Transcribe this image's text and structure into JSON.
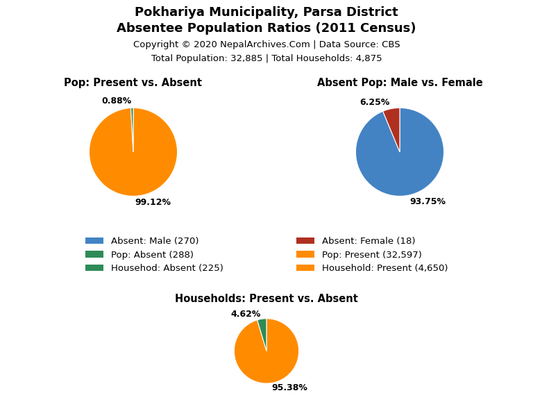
{
  "title": "Pokhariya Municipality, Parsa District",
  "subtitle": "Absentee Population Ratios (2011 Census)",
  "annotations": [
    "Copyright © 2020 NepalArchives.Com | Data Source: CBS",
    "Total Population: 32,885 | Total Households: 4,875"
  ],
  "legend_entries": [
    {
      "name": "Absent: Male (270)",
      "color": "#4383C4"
    },
    {
      "name": "Absent: Female (18)",
      "color": "#B03020"
    },
    {
      "name": "Pop: Absent (288)",
      "color": "#2E8B57"
    },
    {
      "name": "Pop: Present (32,597)",
      "color": "#FF8C00"
    },
    {
      "name": "Househod: Absent (225)",
      "color": "#2E8B57"
    },
    {
      "name": "Household: Present (4,650)",
      "color": "#FF8C00"
    }
  ],
  "chart_data": [
    {
      "type": "pie",
      "title": "Pop: Present vs. Absent",
      "values": [
        99.12,
        0.88
      ],
      "value_labels": [
        "99.12%",
        "0.88%"
      ],
      "colors": [
        "#FF8C00",
        "#2E8B57"
      ],
      "data_labels": true
    },
    {
      "type": "pie",
      "title": "Absent Pop: Male vs. Female",
      "values": [
        93.75,
        6.25
      ],
      "value_labels": [
        "93.75%",
        "6.25%"
      ],
      "colors": [
        "#4383C4",
        "#B03020"
      ],
      "data_labels": true
    },
    {
      "type": "pie",
      "title": "Households: Present vs. Absent",
      "values": [
        95.38,
        4.62
      ],
      "value_labels": [
        "95.38%",
        "4.62%"
      ],
      "colors": [
        "#FF8C00",
        "#2E8B57"
      ],
      "data_labels": true
    }
  ]
}
